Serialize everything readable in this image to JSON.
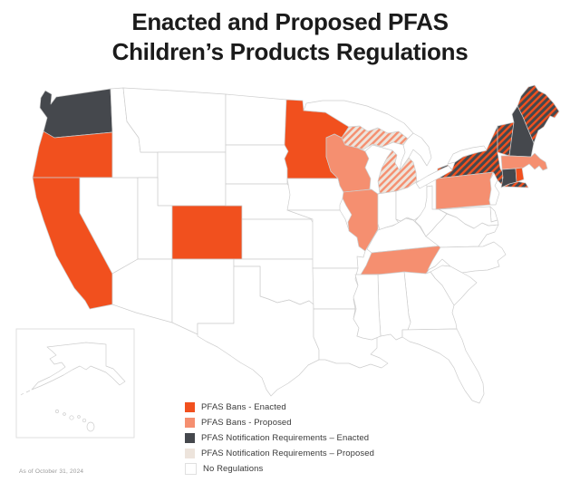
{
  "title": {
    "line1": "Enacted and Proposed PFAS",
    "line2": "Children’s Products Regulations"
  },
  "attribution": "As of October 31, 2024",
  "legend": {
    "items": [
      {
        "key": "ban_enacted",
        "label": "PFAS Bans - Enacted",
        "color": "#F1501E"
      },
      {
        "key": "ban_proposed",
        "label": "PFAS Bans - Proposed",
        "color": "#F58F70"
      },
      {
        "key": "notif_enacted",
        "label": "PFAS Notification Requirements – Enacted",
        "color": "#45484D"
      },
      {
        "key": "notif_proposed",
        "label": "PFAS Notification Requirements – Proposed",
        "color": "#EDE4DC"
      },
      {
        "key": "none",
        "label": "No Regulations",
        "color": "#FFFFFF"
      }
    ]
  },
  "chart_data": {
    "type": "choropleth",
    "region": "United States",
    "title": "Enacted and Proposed PFAS Children’s Products Regulations",
    "as_of": "As of October 31, 2024",
    "status_legend": {
      "ban_enacted": "PFAS Bans - Enacted",
      "ban_proposed": "PFAS Bans - Proposed",
      "notif_enacted": "PFAS Notification Requirements – Enacted",
      "notif_proposed": "PFAS Notification Requirements – Proposed",
      "none": "No Regulations"
    },
    "states": {
      "WA": "notif_enacted",
      "OR": "ban_enacted",
      "CA": "ban_enacted",
      "NV": "none",
      "ID": "none",
      "MT": "none",
      "WY": "none",
      "UT": "none",
      "CO": "ban_enacted",
      "AZ": "none",
      "NM": "none",
      "ND": "none",
      "SD": "none",
      "NE": "none",
      "KS": "none",
      "OK": "none",
      "TX": "none",
      "MN": "ban_enacted",
      "IA": "none",
      "MO": "none",
      "AR": "none",
      "LA": "none",
      "WI": "ban_proposed",
      "IL": "ban_proposed",
      "MI": "ban_proposed+notif_proposed",
      "IN": "none",
      "OH": "none",
      "KY": "none",
      "TN": "ban_proposed",
      "MS": "none",
      "AL": "none",
      "GA": "none",
      "FL": "none",
      "SC": "none",
      "NC": "none",
      "VA": "none",
      "WV": "none",
      "PA": "ban_proposed",
      "NY": "ban_enacted+notif_enacted",
      "NJ": "none",
      "DE": "none",
      "MD": "none",
      "VT": "ban_enacted+notif_enacted",
      "NH": "notif_enacted",
      "ME": "ban_enacted+notif_enacted",
      "MA": "ban_proposed",
      "CT": "notif_enacted",
      "RI": "ban_enacted",
      "AK": "none",
      "HI": "none"
    }
  }
}
